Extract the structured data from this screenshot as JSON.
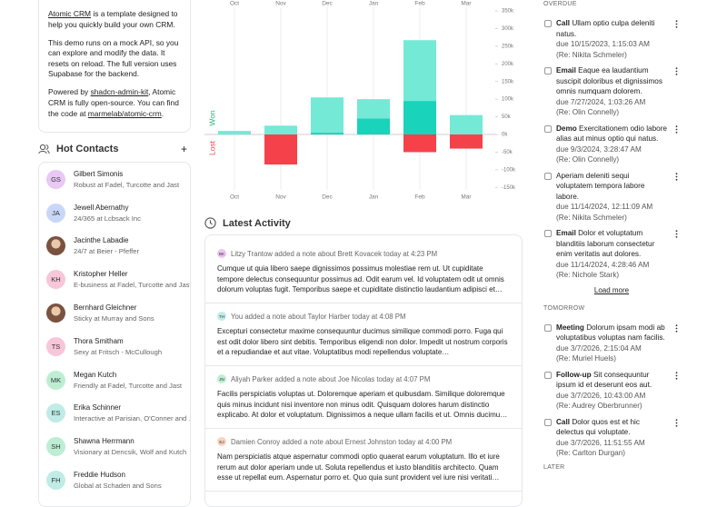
{
  "about": {
    "p1": [
      "Atomic CRM",
      " is a template designed to help you quickly build your own CRM."
    ],
    "p2": "This demo runs on a mock API, so you can explore and modify the data. It resets on reload. The full version uses Supabase for the backend.",
    "p3": [
      "Powered by ",
      "shadcn-admin-kit",
      ", Atomic CRM is fully open-source. You can find the code at ",
      "marmelab/atomic-crm",
      "."
    ]
  },
  "hot_contacts": {
    "title": "Hot Contacts",
    "add": "+",
    "contacts": [
      {
        "initials": "GS",
        "color": "#e9c8f5",
        "name": "Gilbert Simonis",
        "subtitle": "Robust at Fadel, Turcotte and Jast"
      },
      {
        "initials": "JA",
        "color": "#c9d7f7",
        "name": "Jewell Abernathy",
        "subtitle": "24/365 at Lcbsack Inc"
      },
      {
        "name": "Jacinthe Labadie",
        "subtitle": "24/7 at Beier - Pfeffer"
      },
      {
        "initials": "KH",
        "color": "#f7c6d9",
        "name": "Kristopher Heller",
        "subtitle": "E-business at Fadel, Turcotte and Jast"
      },
      {
        "name": "Bernhard Gleichner",
        "subtitle": "Sticky at Murray and Sons"
      },
      {
        "initials": "TS",
        "color": "#f7c6d9",
        "name": "Thora Smitham",
        "subtitle": "Sexy at Fritsch - McCullough"
      },
      {
        "initials": "MK",
        "color": "#bdeed3",
        "name": "Megan Kutch",
        "subtitle": "Friendly at Fadel, Turcotte and Jast"
      },
      {
        "initials": "ES",
        "color": "#bfece6",
        "name": "Erika Schinner",
        "subtitle": "Interactive at Parisian, O'Conner and Bins"
      },
      {
        "initials": "SH",
        "color": "#bdeed3",
        "name": "Shawna Herrmann",
        "subtitle": "Visionary at Dencsik, Wolf and Kutch"
      },
      {
        "initials": "FH",
        "color": "#bfece6",
        "name": "Freddie Hudson",
        "subtitle": "Global at Schaden and Sons"
      }
    ]
  },
  "chart_data": {
    "type": "bar",
    "stacked": true,
    "categories": [
      "Oct",
      "Nov",
      "Dec",
      "Jan",
      "Feb",
      "Mar"
    ],
    "ylabel_positive": "Won",
    "ylabel_negative": "Lost",
    "series": [
      {
        "color": "#19d3bb",
        "values": [
          0,
          0,
          5000,
          45000,
          95000,
          0
        ]
      },
      {
        "color": "#74e9d5",
        "values": [
          10000,
          25000,
          100000,
          55000,
          172000,
          55000
        ]
      },
      {
        "color": "#f5414a",
        "values": [
          0,
          -85000,
          0,
          0,
          -50000,
          -40000
        ]
      }
    ],
    "ylim": [
      -150000,
      350000
    ],
    "yticks": [
      {
        "value": 350000,
        "label": "350k"
      },
      {
        "value": 300000,
        "label": "300k"
      },
      {
        "value": 250000,
        "label": "250k"
      },
      {
        "value": 200000,
        "label": "200k"
      },
      {
        "value": 150000,
        "label": "150k"
      },
      {
        "value": 100000,
        "label": "100k"
      },
      {
        "value": 50000,
        "label": "50k"
      },
      {
        "value": 0,
        "label": "0k"
      },
      {
        "value": -50000,
        "label": "-50k"
      },
      {
        "value": -100000,
        "label": "-100k"
      },
      {
        "value": -150000,
        "label": "-150k"
      }
    ]
  },
  "latest_activity": {
    "title": "Latest Activity",
    "entries": [
      {
        "initials": "BK",
        "color": "#efc3f2",
        "header": "Litzy Trantow added a note about Brett Kovacek today at 4:23 PM",
        "body": "Cumque ut quia libero saepe dignissimos possimus molestiae rem ut. Ut cupiditate tempore delectus consequuntur possimus ad. Odit earum vel. Id voluptatem odit ut omnis dolorum voluptas fugit. Temporibus saepe et cupiditate distinctio laudantium adipisci et…"
      },
      {
        "initials": "TH",
        "color": "#bfece6",
        "header": "You added a note about Taylor Harber today at 4:08 PM",
        "body": "Excepturi consectetur maxime consequuntur ducimus similique commodi porro. Fuga qui est odit dolor libero sint debitis. Temporibus eligendi non dolor. Impedit ut nostrum corporis et a repudiandae et aut vitae. Voluptatibus modi repellendus voluptate…"
      },
      {
        "initials": "JN",
        "color": "#bdeed3",
        "header": "Aliyah Parker added a note about Joe Nicolas today at 4:07 PM",
        "body": "Facilis perspiciatis voluptas ut. Doloremque aperiam et quibusdam. Similique doloremque quis minus incidunt nisi inventore non minus odit. Quisquam dolores harum distinctio explicabo. At dolor et voluptatum. Dignissimos a neque ullam facilis et ut. Omnis ducimu…"
      },
      {
        "initials": "EJ",
        "color": "#f8d3bd",
        "header": "Damien Conroy added a note about Ernest Johnston today at 4:00 PM",
        "body": "Nam perspiciatis atque aspernatur commodi optio quaerat earum voluptatum. Illo et iure rerum aut dolor aperiam unde ut. Soluta repellendus et iusto blanditiis architecto. Quam esse ut repellat eum. Aspernatur porro et. Quo quia sunt provident vel iure nisi veritati…"
      }
    ]
  },
  "tasks": {
    "groups": [
      {
        "title": "OVERDUE",
        "load_more": "Load more",
        "items": [
          {
            "type": "Call",
            "text": "Ullam optio culpa deleniti natus.",
            "due": "due 10/15/2023, 1:15:03 AM",
            "re": "(Re: Nikita Schmeler)"
          },
          {
            "type": "Email",
            "text": "Eaque ea laudantium suscipit doloribus et dignissimos omnis numquam dolorem.",
            "due": "due 7/27/2024, 1:03:26 AM",
            "re": "(Re: Olin Connelly)"
          },
          {
            "type": "Demo",
            "text": "Exercitationem odio labore alias aut minus optio qui natus.",
            "due": "due 9/3/2024, 3:28:47 AM",
            "re": "(Re: Olin Connelly)"
          },
          {
            "text": "Aperiam deleniti sequi voluptatem tempora labore labore.",
            "due": "due 11/14/2024, 12:11:09 AM",
            "re": "(Re: Nikita Schmeler)"
          },
          {
            "type": "Email",
            "text": "Dolor et voluptatum blanditiis laborum consectetur enim veritatis aut dolores.",
            "due": "due 11/14/2024, 4:28:46 AM",
            "re": "(Re: Nichole Stark)"
          }
        ]
      },
      {
        "title": "TOMORROW",
        "items": [
          {
            "type": "Meeting",
            "text": "Dolorum ipsam modi ab voluptatibus voluptas nam facilis.",
            "due": "due 3/7/2026, 2:15:04 AM",
            "re": "(Re: Muriel Huels)"
          },
          {
            "type": "Follow-up",
            "text": "Sit consequuntur ipsum id et deserunt eos aut.",
            "due": "due 3/7/2026, 10:43:00 AM",
            "re": "(Re: Audrey Oberbrunner)"
          },
          {
            "type": "Call",
            "text": "Dolor quos est et hic delectus qui voluptate.",
            "due": "due 3/7/2026, 11:51:55 AM",
            "re": "(Re: Carlton Durgan)"
          }
        ]
      },
      {
        "title": "LATER",
        "items": []
      }
    ]
  }
}
